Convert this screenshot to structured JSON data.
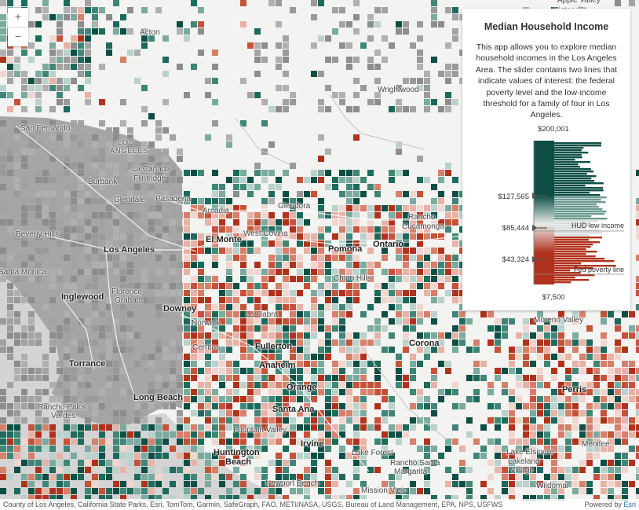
{
  "zoom": {
    "in_label": "+",
    "out_label": "−"
  },
  "legend": {
    "title": "Median Household Income",
    "description": "This app allows you to explore median household incomes in the Los Angeles Area. The slider contains two lines that indicate values of interest: the federal poverty level and the low-income threshold for a family of four in Los Angeles.",
    "max_label": "$200,001",
    "min_label": "$7,500",
    "stops": [
      "$127,565",
      "$85,444",
      "$43,324"
    ],
    "hud_label": "HUD low income",
    "poverty_label": "Fed poverty line",
    "colors": {
      "high": "#0d4f45",
      "mid": "#e8ebea",
      "low": "#b1321c"
    }
  },
  "places": [
    {
      "name": "Victorville",
      "x": 705,
      "y": 8
    },
    {
      "name": "Apple Valley",
      "x": 710,
      "y": -5
    },
    {
      "name": "Acton",
      "x": 178,
      "y": 36
    },
    {
      "name": "Wrightwood",
      "x": 481,
      "y": 109
    },
    {
      "name": "San Fernando",
      "x": 26,
      "y": 158
    },
    {
      "name": "LOS",
      "x": 150,
      "y": 176
    },
    {
      "name": "ANGELES",
      "x": 140,
      "y": 187
    },
    {
      "name": "La Cañada",
      "x": 168,
      "y": 210
    },
    {
      "name": "Flintridge",
      "x": 170,
      "y": 222
    },
    {
      "name": "Burbank",
      "x": 112,
      "y": 226
    },
    {
      "name": "Glendale",
      "x": 145,
      "y": 249
    },
    {
      "name": "Pasadena",
      "x": 198,
      "y": 248
    },
    {
      "name": "Glendora",
      "x": 354,
      "y": 257
    },
    {
      "name": "Arcadia",
      "x": 258,
      "y": 263
    },
    {
      "name": "Rancho",
      "x": 520,
      "y": 271
    },
    {
      "name": "Cucamonga",
      "x": 512,
      "y": 283
    },
    {
      "name": "Beverly Hills",
      "x": 20,
      "y": 293
    },
    {
      "name": "West Covina",
      "x": 310,
      "y": 292
    },
    {
      "name": "El Monte",
      "x": 262,
      "y": 299
    },
    {
      "name": "Ontario",
      "x": 475,
      "y": 305
    },
    {
      "name": "Pomona",
      "x": 418,
      "y": 311
    },
    {
      "name": "Los Angeles",
      "x": 132,
      "y": 312
    },
    {
      "name": "Santa Monica",
      "x": -2,
      "y": 341
    },
    {
      "name": "Chino Hills",
      "x": 425,
      "y": 349
    },
    {
      "name": "Inglewood",
      "x": 78,
      "y": 372
    },
    {
      "name": "Florence-",
      "x": 142,
      "y": 366
    },
    {
      "name": "Graham",
      "x": 146,
      "y": 377
    },
    {
      "name": "Downey",
      "x": 208,
      "y": 387
    },
    {
      "name": "La Habra",
      "x": 313,
      "y": 395
    },
    {
      "name": "Moreno Valley",
      "x": 680,
      "y": 402
    },
    {
      "name": "Norwalk",
      "x": 244,
      "y": 406
    },
    {
      "name": "Corona",
      "x": 521,
      "y": 431
    },
    {
      "name": "Cerritos",
      "x": 245,
      "y": 437
    },
    {
      "name": "Fullerton",
      "x": 325,
      "y": 435
    },
    {
      "name": "Torrance",
      "x": 88,
      "y": 457
    },
    {
      "name": "Anaheim",
      "x": 330,
      "y": 459
    },
    {
      "name": "Orange",
      "x": 365,
      "y": 487
    },
    {
      "name": "Perris",
      "x": 716,
      "y": 490
    },
    {
      "name": "Long Beach",
      "x": 170,
      "y": 500
    },
    {
      "name": "Rancho Palos",
      "x": 48,
      "y": 513
    },
    {
      "name": "Verdes",
      "x": 65,
      "y": 524
    },
    {
      "name": "Santa Ana",
      "x": 347,
      "y": 515
    },
    {
      "name": "Fountain Valley",
      "x": 297,
      "y": 542
    },
    {
      "name": "Irvine",
      "x": 383,
      "y": 559
    },
    {
      "name": "Menifee",
      "x": 741,
      "y": 560
    },
    {
      "name": "Huntington",
      "x": 272,
      "y": 570
    },
    {
      "name": "Beach",
      "x": 287,
      "y": 582
    },
    {
      "name": "Lake Forest",
      "x": 448,
      "y": 571
    },
    {
      "name": "Lake Elsinore",
      "x": 645,
      "y": 570
    },
    {
      "name": "Lakeland",
      "x": 647,
      "y": 582
    },
    {
      "name": "Village",
      "x": 650,
      "y": 593
    },
    {
      "name": "Rancho Santa",
      "x": 497,
      "y": 584
    },
    {
      "name": "Margarita",
      "x": 502,
      "y": 595
    },
    {
      "name": "Newport Beach",
      "x": 338,
      "y": 610
    },
    {
      "name": "Wildomar",
      "x": 683,
      "y": 613
    },
    {
      "name": "Mission Viejo",
      "x": 460,
      "y": 619
    }
  ],
  "attribution": "County of Los Angeles, California State Parks, Esri, TomTom, Garmin, SafeGraph, FAO, METI/NASA, USGS, Bureau of Land Management, EPA, NPS, USFWS",
  "powered_by": "Powered by",
  "powered_by_link": "Esri"
}
